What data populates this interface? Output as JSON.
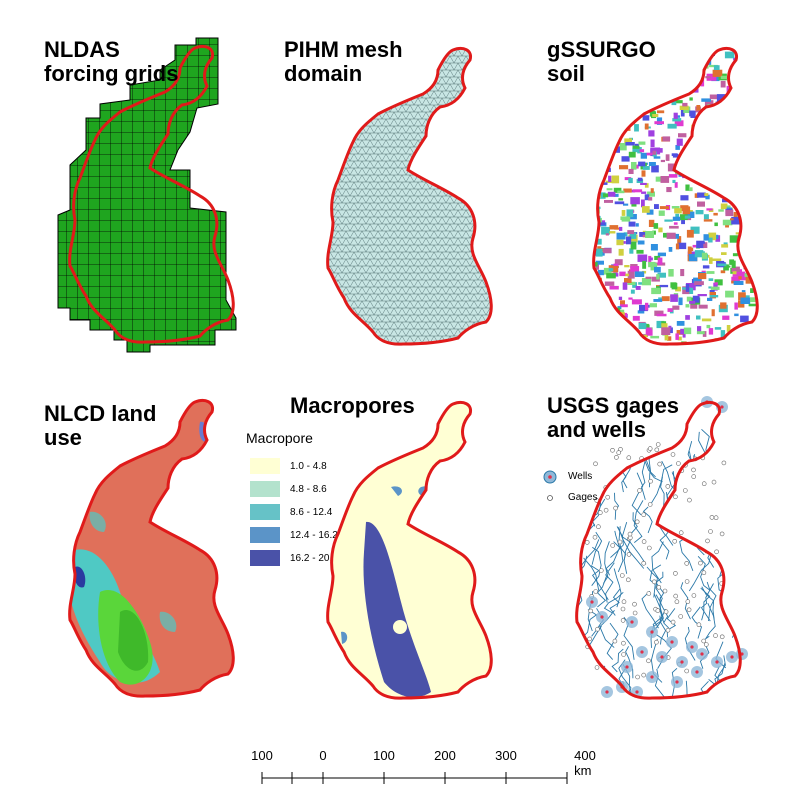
{
  "panels": [
    {
      "title": "NLDAS\nforcing grids"
    },
    {
      "title": "PIHM mesh\ndomain"
    },
    {
      "title": "gSSURGO\nsoil"
    },
    {
      "title": "NLCD land\nuse"
    },
    {
      "title": "Macropores"
    },
    {
      "title": "USGS gages\nand wells"
    }
  ],
  "macropore_legend": {
    "title": "Macropore",
    "classes": [
      {
        "label": "1.0 - 4.8",
        "color": "#ffffd4"
      },
      {
        "label": "4.8 - 8.6",
        "color": "#b3e2cd"
      },
      {
        "label": "8.6 - 12.4",
        "color": "#66c2c7"
      },
      {
        "label": "12.4 - 16.2",
        "color": "#5b94c8"
      },
      {
        "label": "16.2 - 20.0",
        "color": "#4a52a8"
      }
    ]
  },
  "gages_legend": {
    "wells_label": "Wells",
    "gages_label": "Gages"
  },
  "scalebar": {
    "labels": [
      "100",
      "0",
      "100",
      "200",
      "300",
      "400 km"
    ]
  },
  "colors": {
    "boundary": "#e01a1a",
    "nldas_fill": "#1fa51f",
    "mesh_fill": "#c8e6e4",
    "landuse_base": "#e0705a",
    "stream": "#2a78a8",
    "well_fill": "#8fb8d8",
    "well_center": "#e0304a"
  }
}
